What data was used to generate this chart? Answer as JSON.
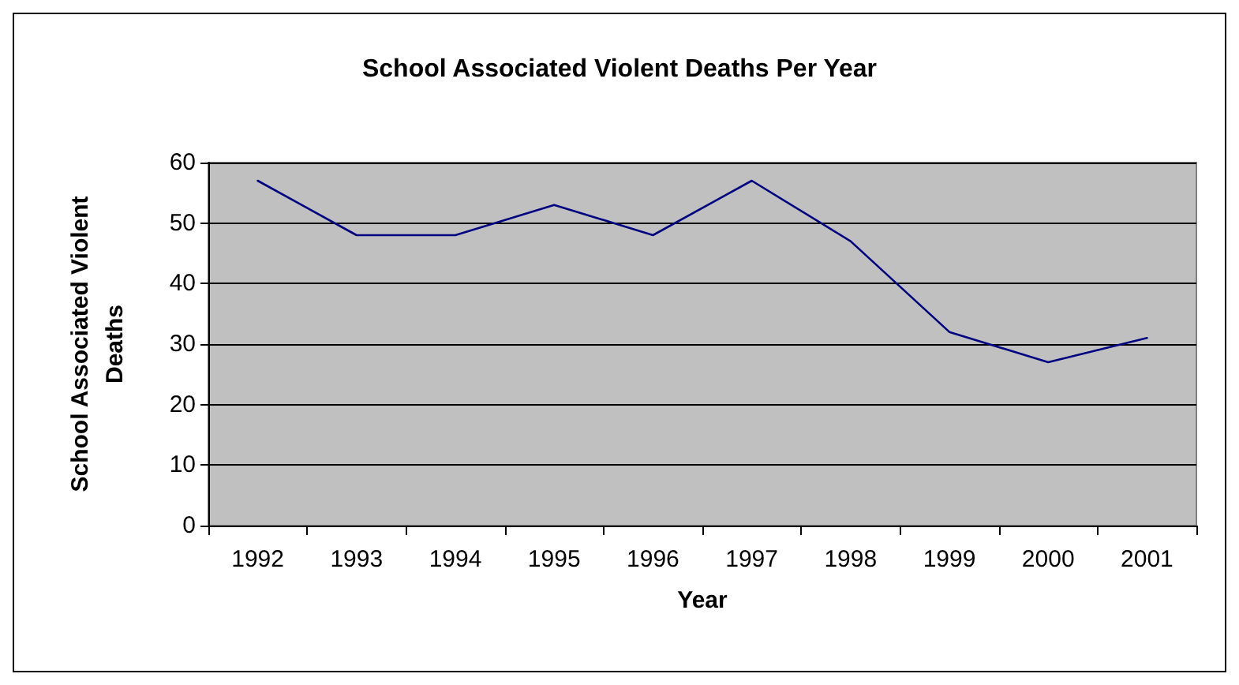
{
  "chart_data": {
    "type": "line",
    "title": "School Associated Violent Deaths Per Year",
    "xlabel": "Year",
    "ylabel": "School Associated Violent Deaths",
    "categories": [
      "1992",
      "1993",
      "1994",
      "1995",
      "1996",
      "1997",
      "1998",
      "1999",
      "2000",
      "2001"
    ],
    "series": [
      {
        "color": "#000080",
        "values": [
          57,
          48,
          48,
          53,
          48,
          57,
          47,
          32,
          27,
          31
        ]
      }
    ],
    "ylim": [
      0,
      60
    ],
    "yticks": [
      0,
      10,
      20,
      30,
      40,
      50,
      60
    ],
    "grid": "y",
    "marker": "none",
    "line_style": "solid"
  }
}
